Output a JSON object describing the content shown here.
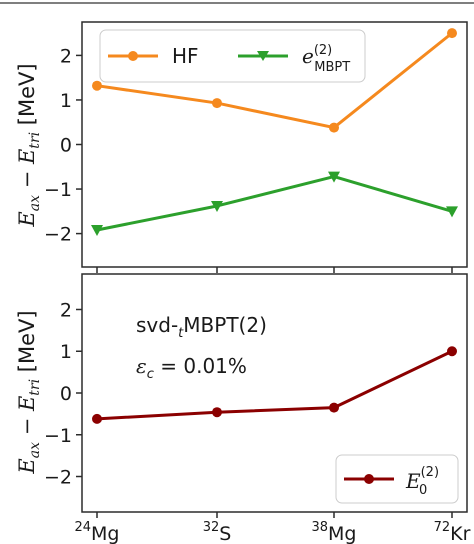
{
  "chart_data": [
    {
      "type": "line",
      "ylabel": "E_ax − E_tri [MeV]",
      "ylim": [
        -2.75,
        2.75
      ],
      "yticks": [
        -2,
        -1,
        0,
        1,
        2
      ],
      "categories": [
        "24Mg",
        "32S",
        "38Mg",
        "72Kr"
      ],
      "legend_placement": "top",
      "series": [
        {
          "name": "HF",
          "color": "#f5891e",
          "marker": "circle",
          "values": [
            1.32,
            0.93,
            0.38,
            2.5
          ]
        },
        {
          "name": "e(2) MBPT",
          "color": "#2ca02c",
          "marker": "triangle-down",
          "values": [
            -1.92,
            -1.38,
            -0.72,
            -1.5
          ]
        }
      ]
    },
    {
      "type": "line",
      "ylabel": "E_ax − E_tri [MeV]",
      "ylim": [
        -2.85,
        2.85
      ],
      "yticks": [
        -2,
        -1,
        0,
        1,
        2
      ],
      "categories": [
        "24Mg",
        "32S",
        "38Mg",
        "72Kr"
      ],
      "legend_placement": "bottom-right",
      "annotations": [
        "svd-tMBPT(2)",
        "εc = 0.01%"
      ],
      "series": [
        {
          "name": "E0(2)",
          "color": "#8b0000",
          "marker": "circle",
          "values": [
            -0.62,
            -0.46,
            -0.35,
            1.0
          ]
        }
      ]
    }
  ],
  "xticks": [
    {
      "mass": "24",
      "element": "Mg"
    },
    {
      "mass": "32",
      "element": "S"
    },
    {
      "mass": "38",
      "element": "Mg"
    },
    {
      "mass": "72",
      "element": "Kr"
    }
  ],
  "ylabel_parts": {
    "e": "E",
    "ax": "ax",
    "minus": " − ",
    "tri": "tri",
    "unit": " [MeV]"
  },
  "legend_top": {
    "hf": "HF",
    "mbpt_e": "e",
    "mbpt_sup": "(2)",
    "mbpt_sub": "MBPT"
  },
  "legend_bottom": {
    "e": "E",
    "sup": "(2)",
    "sub": "0"
  },
  "annotation": {
    "line1_a": "svd-",
    "line1_sub": "t",
    "line1_b": "MBPT(2)",
    "line2_eps": "ε",
    "line2_sub": "c",
    "line2_rest": " = 0.01%"
  },
  "colors": {
    "hf": "#f5891e",
    "mbpt": "#2ca02c",
    "e0": "#8b0000"
  }
}
